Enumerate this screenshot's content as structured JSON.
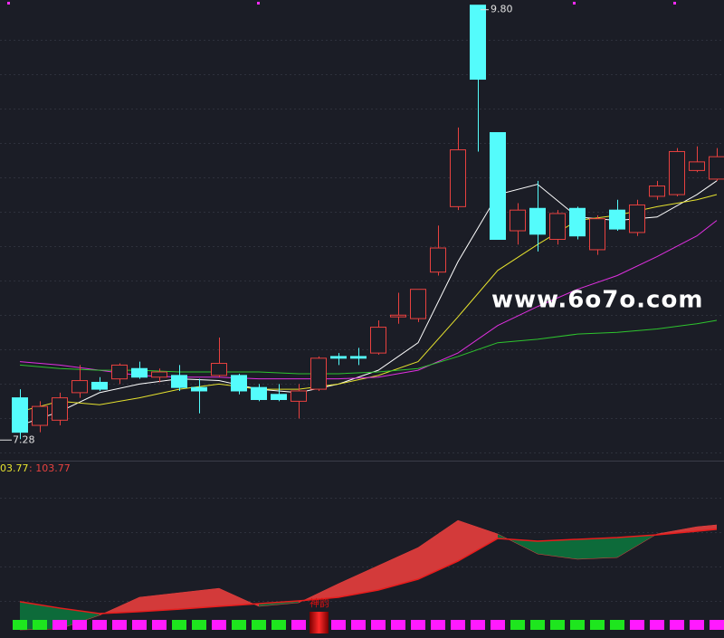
{
  "chart_data": [
    {
      "type": "candlestick",
      "up_color": "#e8413f",
      "down_color": "#54fcfc",
      "open": [
        7.52,
        7.36,
        7.39,
        7.55,
        7.61,
        7.63,
        7.69,
        7.64,
        7.65,
        7.58,
        7.65,
        7.65,
        7.58,
        7.54,
        7.5,
        7.57,
        7.76,
        7.76,
        7.78,
        7.99,
        7.98,
        8.25,
        8.63,
        9.8,
        9.06,
        8.49,
        8.62,
        8.44,
        8.62,
        8.38,
        8.61,
        8.48,
        8.69,
        8.7,
        8.84,
        8.79
      ],
      "high": [
        7.57,
        7.5,
        7.55,
        7.71,
        7.64,
        7.72,
        7.73,
        7.69,
        7.71,
        7.63,
        7.87,
        7.66,
        7.6,
        7.6,
        7.6,
        7.76,
        7.78,
        7.81,
        7.97,
        8.13,
        8.15,
        8.52,
        9.09,
        9.8,
        9.06,
        8.65,
        8.78,
        8.61,
        8.63,
        8.58,
        8.67,
        8.67,
        8.78,
        8.97,
        8.98,
        8.97
      ],
      "low": [
        7.28,
        7.32,
        7.36,
        7.52,
        7.56,
        7.6,
        7.63,
        7.61,
        7.56,
        7.43,
        7.64,
        7.54,
        7.5,
        7.5,
        7.4,
        7.56,
        7.71,
        7.71,
        7.77,
        7.95,
        7.96,
        8.23,
        8.61,
        8.95,
        8.44,
        8.41,
        8.37,
        8.41,
        8.44,
        8.35,
        8.49,
        8.46,
        8.67,
        8.69,
        8.83,
        8.78
      ],
      "close": [
        7.32,
        7.47,
        7.52,
        7.62,
        7.57,
        7.71,
        7.64,
        7.67,
        7.58,
        7.56,
        7.72,
        7.56,
        7.51,
        7.51,
        7.56,
        7.75,
        7.75,
        7.75,
        7.93,
        8.0,
        8.15,
        8.39,
        8.96,
        9.37,
        8.44,
        8.61,
        8.47,
        8.59,
        8.46,
        8.56,
        8.5,
        8.64,
        8.75,
        8.95,
        8.89,
        8.92
      ],
      "annotations": [
        "9.80",
        "7.28"
      ],
      "lines": [
        {
          "color": "#ffffff",
          "x": [
            0,
            2,
            4,
            6,
            8,
            10,
            12,
            14,
            16,
            18,
            20,
            22,
            24,
            26,
            28,
            30,
            32,
            34,
            35
          ],
          "values": [
            7.36,
            7.44,
            7.55,
            7.6,
            7.63,
            7.62,
            7.57,
            7.55,
            7.6,
            7.68,
            7.84,
            8.31,
            8.7,
            8.76,
            8.57,
            8.55,
            8.57,
            8.7,
            8.78
          ]
        },
        {
          "color": "#e6e22e",
          "x": [
            0,
            2,
            4,
            6,
            8,
            10,
            12,
            14,
            16,
            18,
            20,
            22,
            24,
            26,
            28,
            30,
            32,
            34,
            35
          ],
          "values": [
            7.44,
            7.5,
            7.48,
            7.52,
            7.57,
            7.6,
            7.57,
            7.57,
            7.6,
            7.65,
            7.73,
            7.99,
            8.26,
            8.41,
            8.55,
            8.58,
            8.63,
            8.67,
            8.7
          ]
        },
        {
          "color": "#e030e0",
          "x": [
            0,
            2,
            4,
            6,
            8,
            10,
            12,
            14,
            16,
            18,
            20,
            22,
            24,
            26,
            28,
            30,
            32,
            34,
            35
          ],
          "values": [
            7.73,
            7.71,
            7.68,
            7.65,
            7.64,
            7.64,
            7.63,
            7.63,
            7.63,
            7.64,
            7.68,
            7.78,
            7.94,
            8.05,
            8.15,
            8.23,
            8.34,
            8.46,
            8.55
          ]
        },
        {
          "color": "#2ec42e",
          "x": [
            0,
            2,
            4,
            6,
            8,
            10,
            12,
            14,
            16,
            18,
            20,
            22,
            24,
            26,
            28,
            30,
            32,
            34,
            35
          ],
          "values": [
            7.71,
            7.69,
            7.68,
            7.68,
            7.67,
            7.67,
            7.67,
            7.66,
            7.66,
            7.67,
            7.69,
            7.76,
            7.84,
            7.86,
            7.89,
            7.9,
            7.92,
            7.95,
            7.97
          ]
        }
      ],
      "ylim": [
        7.15,
        9.83
      ],
      "watermark": "www.6o7o.com"
    },
    {
      "type": "band",
      "header": [
        "03.77",
        ": 103.77"
      ],
      "header_colors": [
        "#e6e22e",
        "#e8413f"
      ],
      "x": [
        0,
        2,
        4,
        6,
        8,
        10,
        12,
        14,
        16,
        18,
        20,
        22,
        24,
        26,
        28,
        30,
        32,
        34,
        35
      ],
      "series": [
        {
          "color": "#e8413f",
          "values": [
            4.7,
            5.3,
            13.2,
            23.7,
            26.3,
            28.9,
            18.4,
            20.5,
            31.6,
            42.1,
            52.6,
            68.4,
            60.5,
            48.9,
            45.8,
            46.8,
            60.5,
            64.7,
            65.8
          ]
        },
        {
          "color": "#e81c1c",
          "values": [
            21.1,
            17.4,
            14.2,
            15.3,
            16.8,
            18.4,
            20.0,
            21.6,
            23.7,
            27.9,
            34.2,
            44.7,
            57.9,
            56.3,
            57.4,
            58.4,
            60.0,
            62.1,
            63.2
          ]
        }
      ],
      "band_colors": [
        "#d33a3a",
        "#0d6b3a"
      ],
      "ylim": [
        0,
        100
      ],
      "signals": [
        "green",
        "green",
        "magenta",
        "magenta",
        "magenta",
        "magenta",
        "magenta",
        "magenta",
        "green",
        "green",
        "magenta",
        "green",
        "green",
        "green",
        "magenta",
        "red",
        "magenta",
        "magenta",
        "magenta",
        "magenta",
        "magenta",
        "magenta",
        "magenta",
        "magenta",
        "magenta",
        "green",
        "green",
        "green",
        "green",
        "green",
        "green",
        "magenta",
        "magenta",
        "magenta",
        "magenta",
        "magenta"
      ],
      "signal_colors": {
        "green": "#1ee61e",
        "magenta": "#ff1aff",
        "red": "#d81010"
      },
      "marker_label": "神韵"
    }
  ]
}
